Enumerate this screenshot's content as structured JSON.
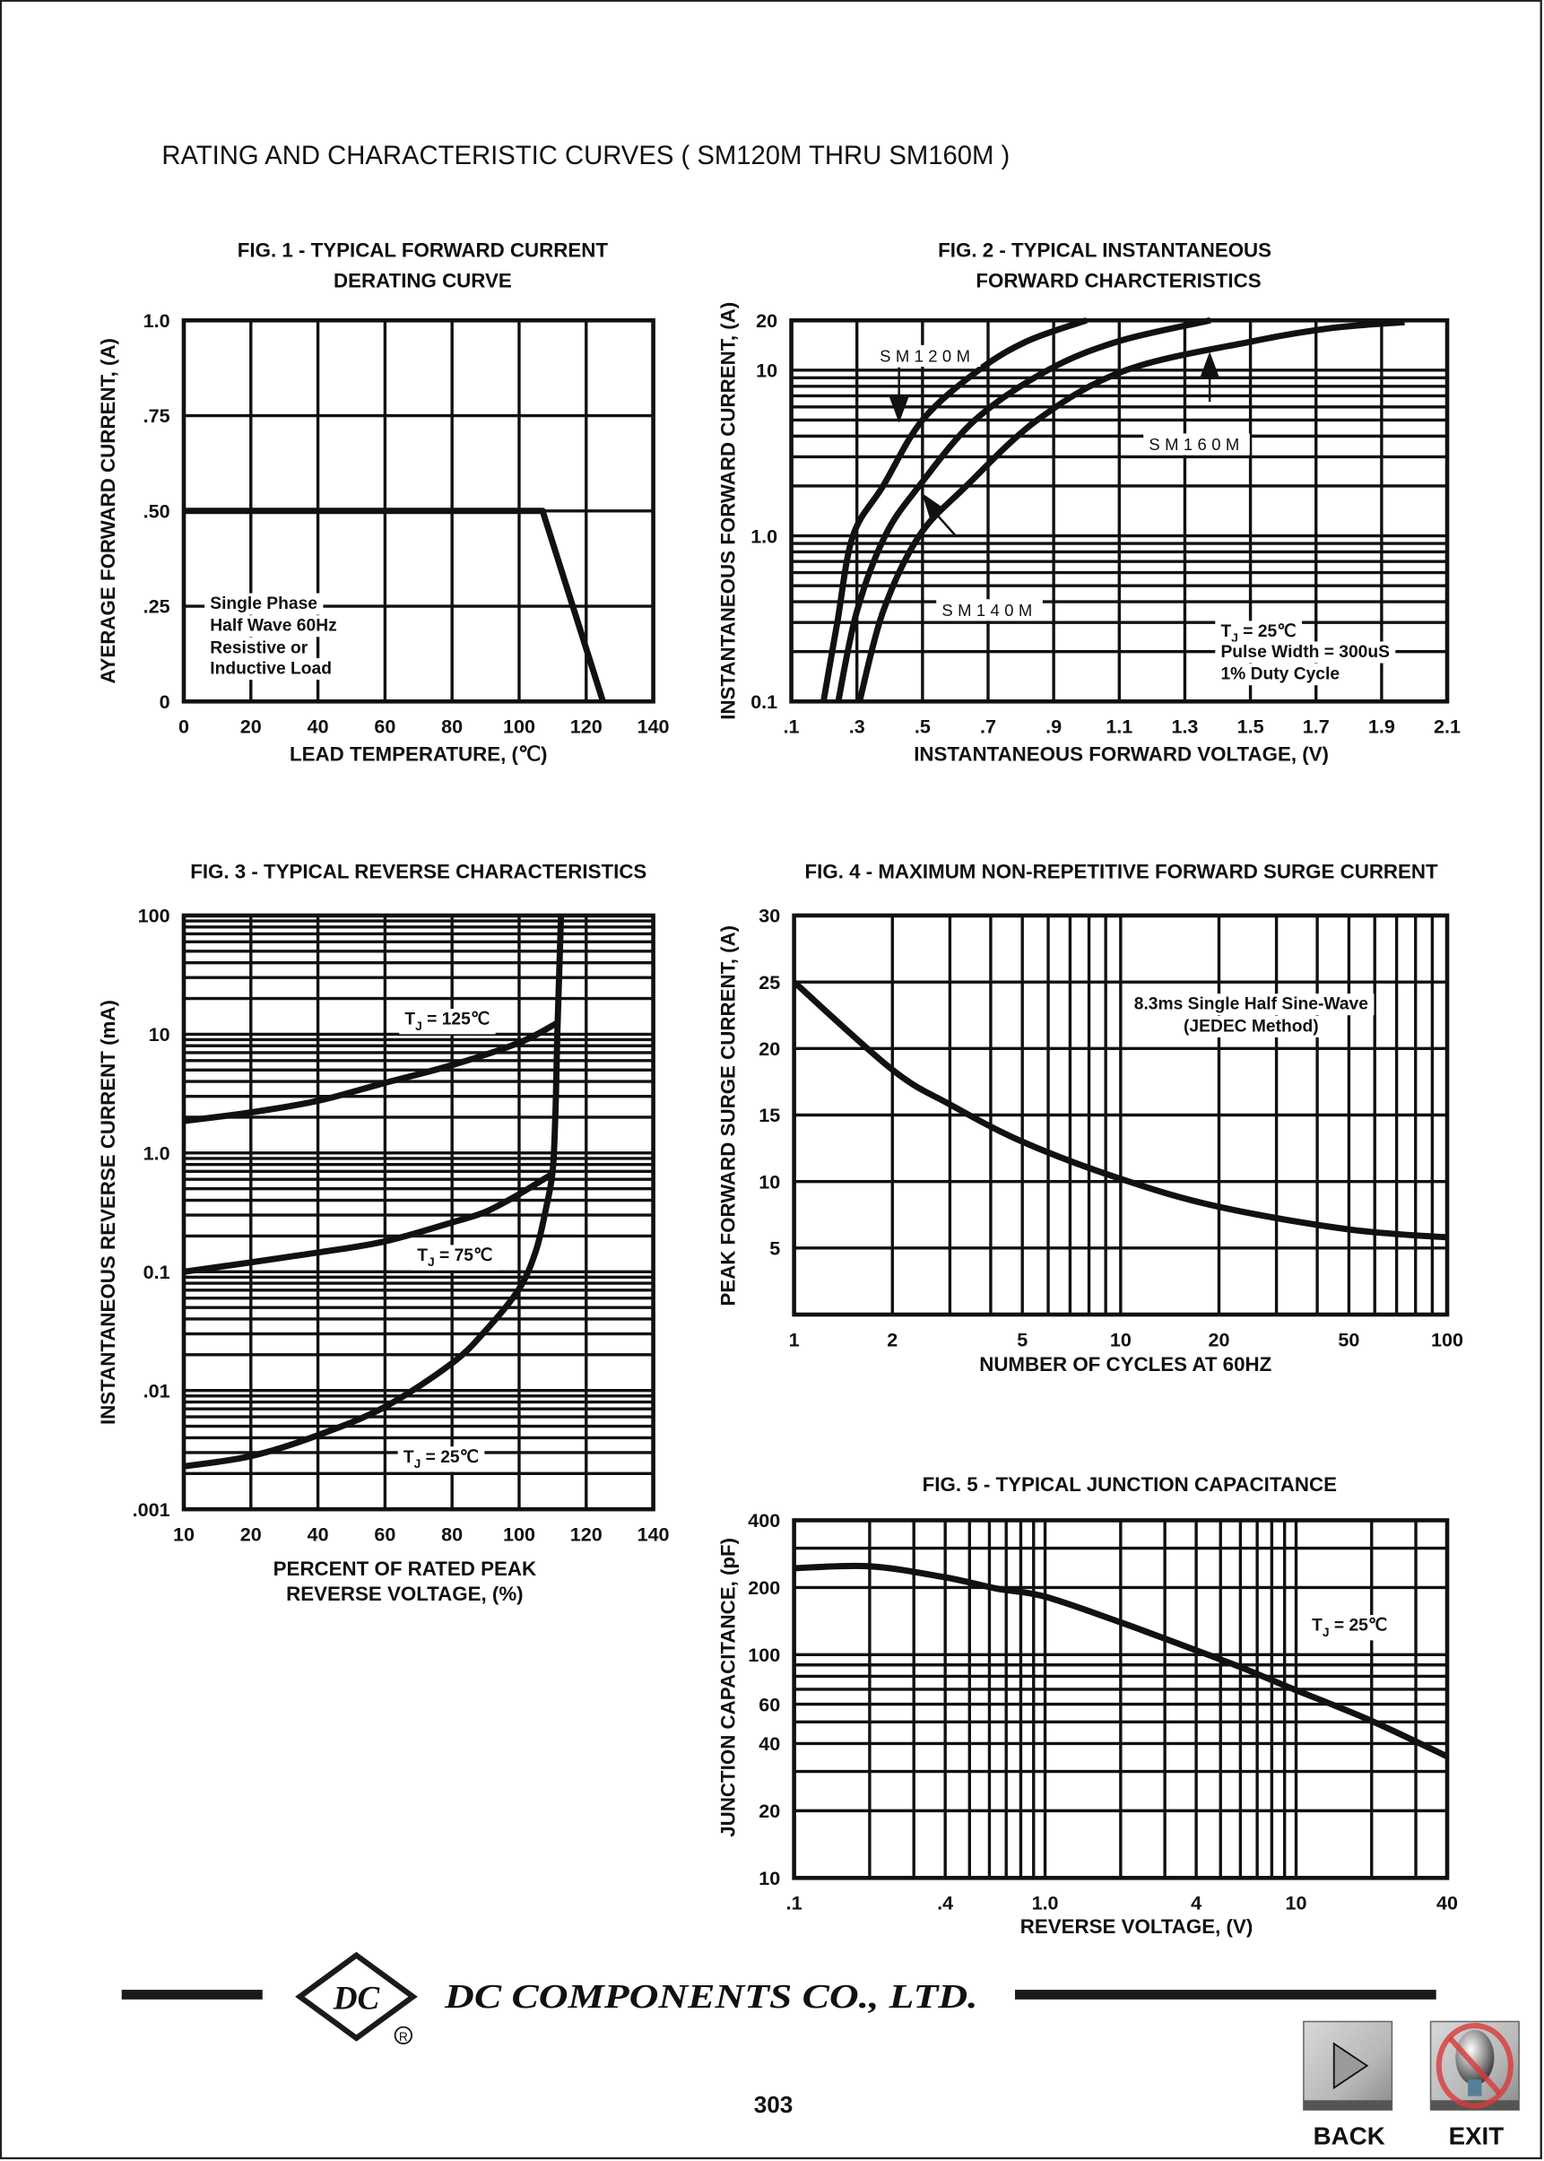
{
  "page": {
    "title": "RATING AND CHARACTERISTIC CURVES ( SM120M THRU SM160M )",
    "page_number": "303",
    "company": "DC COMPONENTS CO., LTD.",
    "logo_text": "DC",
    "registered_mark": "®",
    "back_label": "BACK",
    "exit_label": "EXIT",
    "line_color": "#111111"
  },
  "chart_data": [
    {
      "type": "line",
      "title": [
        "FIG. 1 - TYPICAL FORWARD CURRENT",
        "DERATING CURVE"
      ],
      "xlabel": [
        "LEAD TEMPERATURE, (℃)"
      ],
      "ylabel": "AYERAGE FORWARD CURRENT, (A)",
      "xscale": "linear",
      "yscale": "linear",
      "xlim": [
        0,
        140
      ],
      "ylim": [
        0,
        1.0
      ],
      "xticks": [
        0,
        20,
        40,
        60,
        80,
        100,
        120,
        140
      ],
      "xtick_labels": [
        "0",
        "20",
        "40",
        "60",
        "80",
        "100",
        "120",
        "140"
      ],
      "yticks": [
        0,
        0.25,
        0.5,
        0.75,
        1.0
      ],
      "ytick_labels": [
        "0",
        ".25",
        ".50",
        ".75",
        "1.0"
      ],
      "grid": true,
      "series": [
        {
          "points": [
            [
              0,
              0.5
            ],
            [
              107,
              0.5
            ],
            [
              125,
              0
            ]
          ]
        }
      ],
      "annotations": [
        {
          "text": "Single Phase"
        },
        {
          "text": "Half Wave 60Hz"
        },
        {
          "text": "Resistive or"
        },
        {
          "text": "Inductive Load"
        }
      ]
    },
    {
      "type": "line",
      "title": [
        "FIG. 2 - TYPICAL INSTANTANEOUS",
        "FORWARD CHARCTERISTICS"
      ],
      "xlabel": [
        "INSTANTANEOUS FORWARD VOLTAGE, (V)"
      ],
      "ylabel": "INSTANTANEOUS FORWARD CURRENT, (A)",
      "xscale": "linear",
      "yscale": "log",
      "xlim": [
        0.1,
        2.1
      ],
      "ylim": [
        0.1,
        20
      ],
      "xticks": [
        0.1,
        0.3,
        0.5,
        0.7,
        0.9,
        1.1,
        1.3,
        1.5,
        1.7,
        1.9,
        2.1
      ],
      "xtick_labels": [
        ".1",
        ".3",
        ".5",
        ".7",
        ".9",
        "1.1",
        "1.3",
        "1.5",
        "1.7",
        "1.9",
        "2.1"
      ],
      "yticks": [
        0.1,
        1.0,
        10,
        20
      ],
      "ytick_labels": [
        "0.1",
        "1.0",
        "10",
        "20"
      ],
      "grid": true,
      "series": [
        {
          "name": "SM120M",
          "points": [
            [
              0.198,
              0.1
            ],
            [
              0.24,
              0.3
            ],
            [
              0.288,
              1.0
            ],
            [
              0.38,
              2.0
            ],
            [
              0.5,
              5.0
            ],
            [
              0.671,
              10
            ],
            [
              0.82,
              15
            ],
            [
              1.0,
              20
            ]
          ]
        },
        {
          "name": "SM140M",
          "points": [
            [
              0.243,
              0.1
            ],
            [
              0.3,
              0.35
            ],
            [
              0.386,
              1.0
            ],
            [
              0.49,
              2.0
            ],
            [
              0.66,
              5.0
            ],
            [
              0.882,
              10
            ],
            [
              1.1,
              15
            ],
            [
              1.378,
              20
            ]
          ]
        },
        {
          "name": "SM160M",
          "points": [
            [
              0.308,
              0.1
            ],
            [
              0.38,
              0.35
            ],
            [
              0.49,
              1.0
            ],
            [
              0.634,
              2.0
            ],
            [
              0.85,
              5.0
            ],
            [
              1.12,
              10
            ],
            [
              1.51,
              15
            ],
            [
              1.75,
              18
            ],
            [
              1.97,
              19.5
            ]
          ]
        }
      ],
      "annotations": [
        {
          "text": "SM120M"
        },
        {
          "text": "SM160M"
        },
        {
          "text": "SM140M"
        },
        {
          "text": "T",
          "sub": "J",
          "after": " = 25℃"
        },
        {
          "text": "Pulse Width = 300uS"
        },
        {
          "text": "1% Duty Cycle"
        }
      ]
    },
    {
      "type": "line",
      "title": [
        "FIG. 3 - TYPICAL REVERSE CHARACTERISTICS"
      ],
      "xlabel": [
        "PERCENT OF RATED PEAK",
        "REVERSE VOLTAGE, (%)"
      ],
      "ylabel": "INSTANTANEOUS REVERSE CURRENT (mA)",
      "xscale": "linear",
      "yscale": "log",
      "xlim": [
        10,
        140
      ],
      "ylim": [
        0.001,
        100
      ],
      "xticks": [
        10,
        20,
        40,
        60,
        80,
        100,
        120,
        140
      ],
      "xtick_labels": [
        "10",
        "20",
        "40",
        "60",
        "80",
        "100",
        "120",
        "140"
      ],
      "yticks": [
        0.001,
        0.01,
        0.1,
        1.0,
        10,
        100
      ],
      "ytick_labels": [
        ".001",
        ".01",
        "0.1",
        "1.0",
        "10",
        "100"
      ],
      "grid": true,
      "series": [
        {
          "name": "TJ = 125℃",
          "points": [
            [
              10,
              1.86
            ],
            [
              20,
              2.2
            ],
            [
              40,
              2.75
            ],
            [
              60,
              3.9
            ],
            [
              80,
              5.5
            ],
            [
              100,
              8.5
            ],
            [
              111,
              12.3
            ]
          ]
        },
        {
          "name": "TJ = 75℃",
          "points": [
            [
              10,
              0.1
            ],
            [
              20,
              0.12
            ],
            [
              40,
              0.145
            ],
            [
              60,
              0.18
            ],
            [
              80,
              0.26
            ],
            [
              90,
              0.32
            ],
            [
              100,
              0.45
            ],
            [
              110,
              0.67
            ]
          ]
        },
        {
          "name": "TJ = 25℃",
          "points": [
            [
              10,
              0.0023
            ],
            [
              20,
              0.0028
            ],
            [
              40,
              0.0042
            ],
            [
              60,
              0.0073
            ],
            [
              80,
              0.017
            ],
            [
              90,
              0.032
            ],
            [
              100,
              0.072
            ],
            [
              105,
              0.15
            ],
            [
              108,
              0.34
            ],
            [
              110,
              0.7
            ],
            [
              110.8,
              2.1
            ],
            [
              111.4,
              10
            ],
            [
              112.5,
              100
            ]
          ]
        }
      ],
      "annotations": [
        {
          "text": "T",
          "sub": "J",
          "after": " = 125℃"
        },
        {
          "text": "T",
          "sub": "J",
          "after": " = 75℃"
        },
        {
          "text": "T",
          "sub": "J",
          "after": " = 25℃"
        }
      ]
    },
    {
      "type": "line",
      "title": [
        "FIG. 4 - MAXIMUM NON-REPETITIVE FORWARD SURGE CURRENT"
      ],
      "xlabel": [
        "NUMBER OF CYCLES AT 60HZ"
      ],
      "ylabel": "PEAK FORWARD SURGE CURRENT, (A)",
      "xscale": "log",
      "yscale": "linear",
      "xlim": [
        1,
        100
      ],
      "ylim": [
        0,
        30
      ],
      "xticks": [
        1,
        2,
        5,
        10,
        20,
        50,
        100
      ],
      "xtick_labels": [
        "1",
        "2",
        "5",
        "10",
        "20",
        "50",
        "100"
      ],
      "yticks": [
        5,
        10,
        15,
        20,
        25,
        30
      ],
      "ytick_labels": [
        "5",
        "10",
        "15",
        "20",
        "25",
        "30"
      ],
      "grid": true,
      "series": [
        {
          "points": [
            [
              1,
              25
            ],
            [
              2,
              18.4
            ],
            [
              3,
              15.8
            ],
            [
              5,
              13.0
            ],
            [
              10,
              10.2
            ],
            [
              20,
              8.1
            ],
            [
              50,
              6.4
            ],
            [
              100,
              5.8
            ]
          ]
        }
      ],
      "annotations": [
        {
          "text": "8.3ms Single Half Sine-Wave"
        },
        {
          "text": "(JEDEC Method)"
        }
      ]
    },
    {
      "type": "line",
      "title": [
        "FIG. 5 - TYPICAL JUNCTION CAPACITANCE"
      ],
      "xlabel": [
        "REVERSE VOLTAGE, (V)"
      ],
      "ylabel": "JUNCTION CAPACITANCE, (pF)",
      "xscale": "log",
      "yscale": "log",
      "xlim": [
        0.1,
        40
      ],
      "ylim": [
        10,
        400
      ],
      "xticks": [
        0.1,
        0.4,
        1.0,
        4,
        10,
        40
      ],
      "xtick_labels": [
        ".1",
        ".4",
        "1.0",
        "4",
        "10",
        "40"
      ],
      "yticks": [
        10,
        20,
        40,
        60,
        100,
        200,
        400
      ],
      "ytick_labels": [
        "10",
        "20",
        "40",
        "60",
        "100",
        "200",
        "400"
      ],
      "grid": true,
      "series": [
        {
          "points": [
            [
              0.1,
              244
            ],
            [
              0.2,
              249
            ],
            [
              0.4,
              222
            ],
            [
              0.64,
              198
            ],
            [
              1.0,
              182
            ],
            [
              1.95,
              141
            ],
            [
              3.7,
              108
            ],
            [
              6.0,
              88
            ],
            [
              9.5,
              71
            ],
            [
              19.6,
              51
            ],
            [
              40,
              35
            ]
          ]
        }
      ],
      "annotations": [
        {
          "text": "T",
          "sub": "J",
          "after": " = 25℃"
        }
      ]
    }
  ]
}
